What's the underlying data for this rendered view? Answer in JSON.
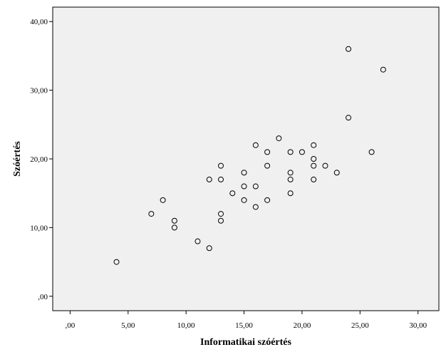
{
  "chart_data": {
    "type": "scatter",
    "xlabel": "Informatikai szóértés",
    "ylabel": "Szóértés",
    "xlim": [
      -1.5,
      31.8
    ],
    "ylim": [
      -2.1,
      42.1
    ],
    "x_ticks": [
      0,
      5,
      10,
      15,
      20,
      25,
      30
    ],
    "y_ticks": [
      0,
      10,
      20,
      30,
      40
    ],
    "x_tick_labels": [
      ",00",
      "5,00",
      "10,00",
      "15,00",
      "20,00",
      "25,00",
      "30,00"
    ],
    "y_tick_labels": [
      ",00",
      "10,00",
      "20,00",
      "30,00",
      "40,00"
    ],
    "grid": false,
    "marker": "hollow-circle",
    "colors": {
      "plot_bg": "#f0f0f0",
      "marker": "#000000",
      "axis": "#000000"
    },
    "points": [
      {
        "x": 4,
        "y": 5
      },
      {
        "x": 7,
        "y": 12
      },
      {
        "x": 8,
        "y": 14
      },
      {
        "x": 9,
        "y": 11
      },
      {
        "x": 9,
        "y": 10
      },
      {
        "x": 11,
        "y": 8
      },
      {
        "x": 12,
        "y": 7
      },
      {
        "x": 12,
        "y": 17
      },
      {
        "x": 13,
        "y": 19
      },
      {
        "x": 13,
        "y": 17
      },
      {
        "x": 13,
        "y": 12
      },
      {
        "x": 13,
        "y": 11
      },
      {
        "x": 14,
        "y": 15
      },
      {
        "x": 15,
        "y": 18
      },
      {
        "x": 15,
        "y": 16
      },
      {
        "x": 15,
        "y": 14
      },
      {
        "x": 16,
        "y": 22
      },
      {
        "x": 16,
        "y": 16
      },
      {
        "x": 16,
        "y": 13
      },
      {
        "x": 17,
        "y": 21
      },
      {
        "x": 17,
        "y": 19
      },
      {
        "x": 17,
        "y": 14
      },
      {
        "x": 18,
        "y": 23
      },
      {
        "x": 19,
        "y": 21
      },
      {
        "x": 19,
        "y": 18
      },
      {
        "x": 19,
        "y": 17
      },
      {
        "x": 19,
        "y": 15
      },
      {
        "x": 20,
        "y": 21
      },
      {
        "x": 21,
        "y": 22
      },
      {
        "x": 21,
        "y": 20
      },
      {
        "x": 21,
        "y": 19
      },
      {
        "x": 21,
        "y": 17
      },
      {
        "x": 22,
        "y": 19
      },
      {
        "x": 23,
        "y": 18
      },
      {
        "x": 24,
        "y": 36
      },
      {
        "x": 24,
        "y": 26
      },
      {
        "x": 26,
        "y": 21
      },
      {
        "x": 27,
        "y": 33
      }
    ]
  }
}
